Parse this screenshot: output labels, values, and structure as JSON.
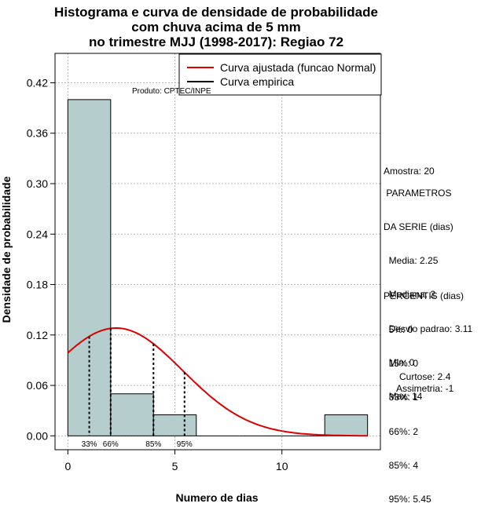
{
  "chart_data": {
    "type": "bar",
    "title": [
      "Histograma e curva de densidade de probabilidade",
      "com chuva acima de 5 mm",
      "no trimestre MJJ (1998-2017): Regiao 72"
    ],
    "xlabel": "Numero de dias",
    "ylabel": "Densidade de probabilidade",
    "xlim": [
      -0.6,
      14.6
    ],
    "ylim": [
      -0.0165,
      0.455
    ],
    "x_ticks": [
      0,
      5,
      10
    ],
    "y_ticks": [
      "0.00",
      "0.06",
      "0.12",
      "0.18",
      "0.24",
      "0.30",
      "0.36",
      "0.42"
    ],
    "grid": true,
    "bins": [
      {
        "x0": 0,
        "x1": 2,
        "density": 0.4
      },
      {
        "x0": 2,
        "x1": 4,
        "density": 0.05
      },
      {
        "x0": 4,
        "x1": 6,
        "density": 0.025
      },
      {
        "x0": 6,
        "x1": 8,
        "density": 0
      },
      {
        "x0": 8,
        "x1": 10,
        "density": 0
      },
      {
        "x0": 10,
        "x1": 12,
        "density": 0
      },
      {
        "x0": 12,
        "x1": 14,
        "density": 0.025
      }
    ],
    "bar_color": "#b5cdcd",
    "normal_curve": {
      "name": "Curva ajustada (funcao Normal)",
      "mean": 2.25,
      "sd": 3.11,
      "color": "#dd0000"
    },
    "empirical_curve": {
      "name": "Curva empirica",
      "color": "#000000"
    },
    "percentile_lines": [
      {
        "label": "33%",
        "x": 1
      },
      {
        "label": "66%",
        "x": 2
      },
      {
        "label": "85%",
        "x": 4
      },
      {
        "label": "95%",
        "x": 5.45
      }
    ],
    "credit": "Produto: CPTEC/INPE",
    "legend_position": "top-right"
  },
  "stats": {
    "sample": "Amostra: 20",
    "params_header": [
      " PARAMETROS",
      "DA SERIE (dias)"
    ],
    "params": [
      "  Media: 2.25",
      "  Mediana: 2",
      "  Desvio padrao: 3.11",
      "  Min: 0",
      "  Max: 14"
    ],
    "percentis_header": "PERCENTIS (dias)",
    "percentis": [
      "  5%: 0",
      "  15%: 0",
      "  33%: 1",
      "  66%: 2",
      "  85%: 4",
      "  95%: 5.45"
    ],
    "curtose": "Curtose: 2.4",
    "assimetria": "Assimetria: -1"
  }
}
